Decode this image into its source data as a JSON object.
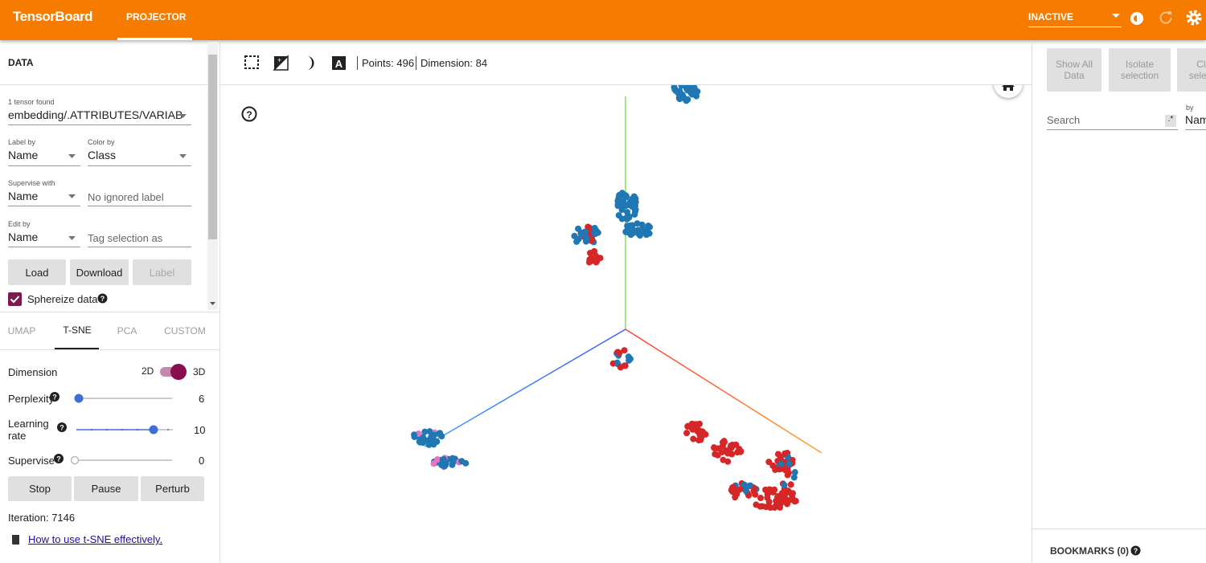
{
  "header": {
    "title": "TensorBoard",
    "tab": "PROJECTOR",
    "run_status": "INACTIVE"
  },
  "data_panel": {
    "title": "DATA",
    "tensor_count": "1 tensor found",
    "tensor": "embedding/.ATTRIBUTES/VARIAB",
    "label_by": {
      "label": "Label by",
      "value": "Name"
    },
    "color_by": {
      "label": "Color by",
      "value": "Class"
    },
    "supervise_with": {
      "label": "Supervise with",
      "value": "Name"
    },
    "ignored_label": "No ignored label",
    "edit_by": {
      "label": "Edit by",
      "value": "Name"
    },
    "tag_selection": "Tag selection as",
    "buttons": [
      "Load",
      "Download",
      "Label"
    ],
    "sphereize": "Sphereize data"
  },
  "projection_tabs": [
    "UMAP",
    "T-SNE",
    "PCA",
    "CUSTOM"
  ],
  "tsne": {
    "dimension": {
      "label": "Dimension",
      "options": [
        "2D",
        "3D"
      ]
    },
    "perplexity": {
      "label": "Perplexity",
      "value": 6
    },
    "learning_rate": {
      "label": "Learning rate",
      "value": 10
    },
    "supervise": {
      "label": "Supervise",
      "value": 0
    },
    "buttons": [
      "Stop",
      "Pause",
      "Perturb"
    ],
    "iteration": "Iteration: 7146",
    "help_link": "How to use t-SNE effectively."
  },
  "toolbar": {
    "points": "Points: 496",
    "dimension": "Dimension: 84"
  },
  "inspector": {
    "buttons": [
      "Show All Data",
      "Isolate selection",
      "Clear selection"
    ],
    "search": "Search",
    "regex": ".*",
    "by_label": "by",
    "by_value": "Name",
    "bookmarks": "BOOKMARKS (0)"
  }
}
